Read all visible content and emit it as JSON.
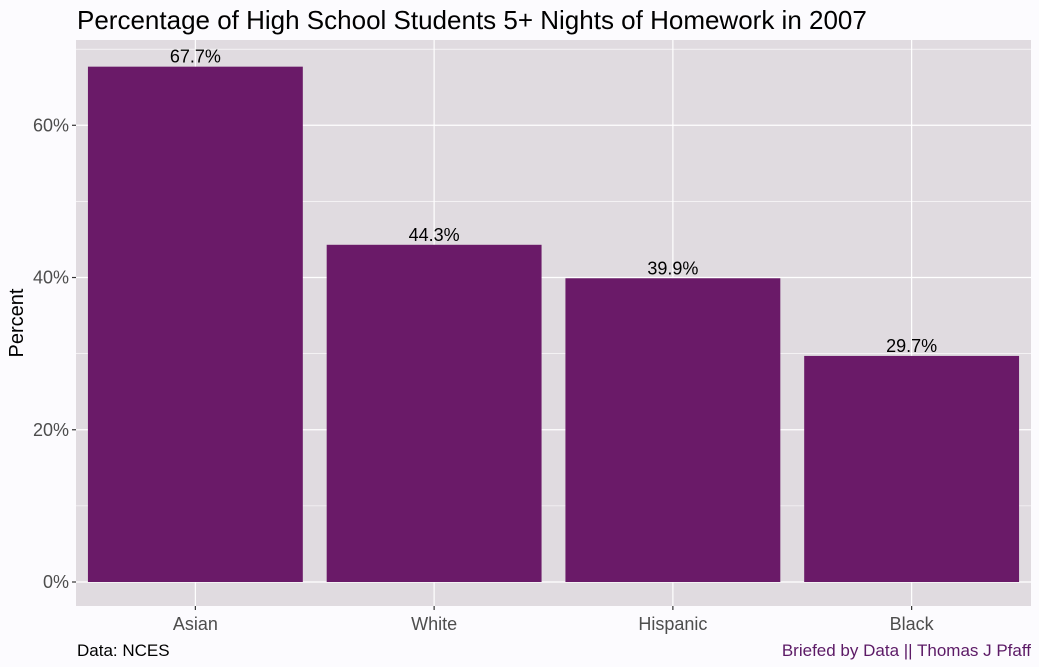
{
  "chart_data": {
    "type": "bar",
    "title": "Percentage of High School Students 5+ Nights of Homework in 2007",
    "xlabel": "",
    "ylabel": "Percent",
    "categories": [
      "Asian",
      "White",
      "Hispanic",
      "Black"
    ],
    "values": [
      67.7,
      44.3,
      39.9,
      29.7
    ],
    "data_labels": [
      "67.7%",
      "44.3%",
      "39.9%",
      "29.7%"
    ],
    "ylim": [
      0,
      71
    ],
    "yticks": [
      0,
      20,
      40,
      60
    ],
    "ytick_labels": [
      "0%",
      "20%",
      "40%",
      "60%"
    ],
    "grid": true,
    "legend": "none",
    "colors": {
      "bar": "#6a1a68",
      "panel": "#e0dbe0",
      "grid": "#ffffff",
      "page": "#fcfbfe"
    }
  },
  "caption": {
    "source": "Data: NCES",
    "credit": "Briefed by Data || Thomas J Pfaff"
  }
}
